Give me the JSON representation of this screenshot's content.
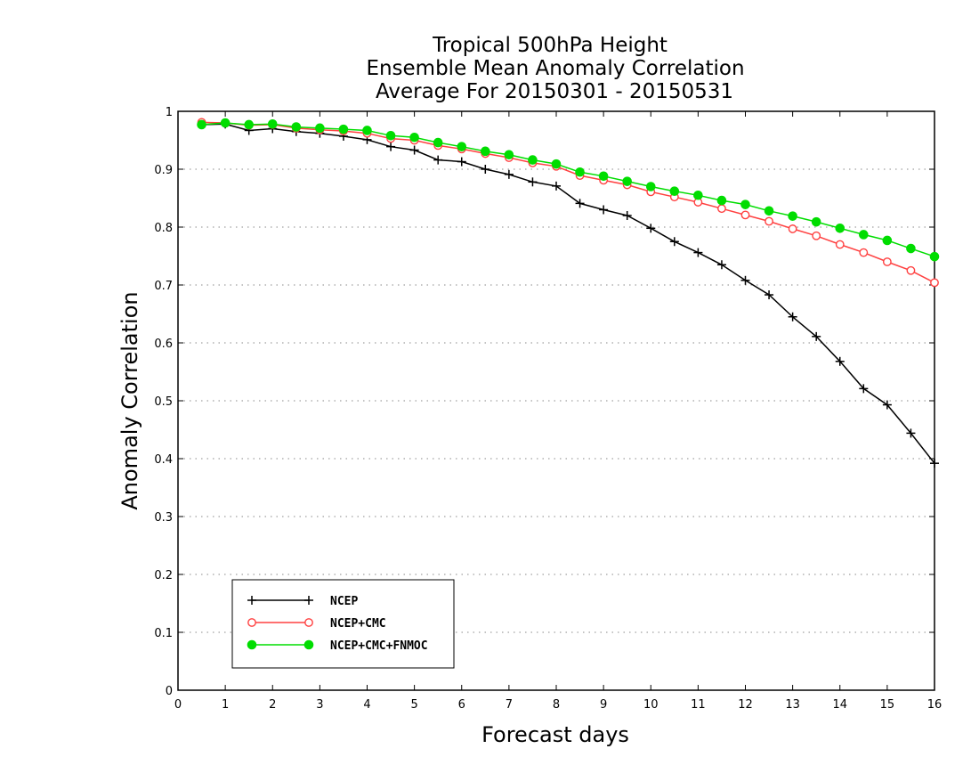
{
  "chart_data": {
    "type": "line",
    "title_lines": [
      "Tropical 500hPa Height",
      "Ensemble Mean Anomaly Correlation",
      "Average For 20150301 - 20150531"
    ],
    "xlabel": "Forecast days",
    "ylabel": "Anomaly Correlation",
    "xlim": [
      0,
      16
    ],
    "ylim": [
      0,
      1
    ],
    "x_ticks": [
      "0",
      "1",
      "2",
      "3",
      "4",
      "5",
      "6",
      "7",
      "8",
      "9",
      "10",
      "11",
      "12",
      "13",
      "14",
      "15",
      "16"
    ],
    "y_ticks": [
      "0",
      "0.1",
      "0.2",
      "0.3",
      "0.4",
      "0.5",
      "0.6",
      "0.7",
      "0.8",
      "0.9",
      "1"
    ],
    "grid": "dotted horizontal",
    "legend_position": "bottom-left",
    "x": [
      0.5,
      1,
      1.5,
      2,
      2.5,
      3,
      3.5,
      4,
      4.5,
      5,
      5.5,
      6,
      6.5,
      7,
      7.5,
      8,
      8.5,
      9,
      9.5,
      10,
      10.5,
      11,
      11.5,
      12,
      12.5,
      13,
      13.5,
      14,
      14.5,
      15,
      15.5,
      16
    ],
    "series": [
      {
        "name": "NCEP",
        "color": "#000000",
        "marker": "plus",
        "values": [
          0.977,
          0.978,
          0.967,
          0.97,
          0.965,
          0.962,
          0.957,
          0.951,
          0.939,
          0.933,
          0.916,
          0.913,
          0.9,
          0.891,
          0.878,
          0.871,
          0.841,
          0.83,
          0.82,
          0.798,
          0.775,
          0.756,
          0.735,
          0.708,
          0.683,
          0.645,
          0.611,
          0.568,
          0.521,
          0.493,
          0.444,
          0.392
        ]
      },
      {
        "name": "NCEP+CMC",
        "color": "#ff4040",
        "marker": "open-circle",
        "values": [
          0.981,
          0.98,
          0.976,
          0.977,
          0.971,
          0.968,
          0.966,
          0.962,
          0.953,
          0.95,
          0.941,
          0.935,
          0.927,
          0.92,
          0.911,
          0.905,
          0.889,
          0.881,
          0.873,
          0.861,
          0.852,
          0.843,
          0.832,
          0.821,
          0.81,
          0.797,
          0.785,
          0.77,
          0.756,
          0.74,
          0.725,
          0.704
        ]
      },
      {
        "name": "NCEP+CMC+FNMOC",
        "color": "#00dd00",
        "marker": "filled-circle",
        "values": [
          0.977,
          0.98,
          0.977,
          0.978,
          0.973,
          0.971,
          0.969,
          0.967,
          0.958,
          0.955,
          0.946,
          0.939,
          0.931,
          0.925,
          0.916,
          0.909,
          0.895,
          0.888,
          0.879,
          0.87,
          0.862,
          0.855,
          0.846,
          0.839,
          0.828,
          0.819,
          0.809,
          0.798,
          0.787,
          0.777,
          0.763,
          0.749
        ]
      }
    ]
  }
}
